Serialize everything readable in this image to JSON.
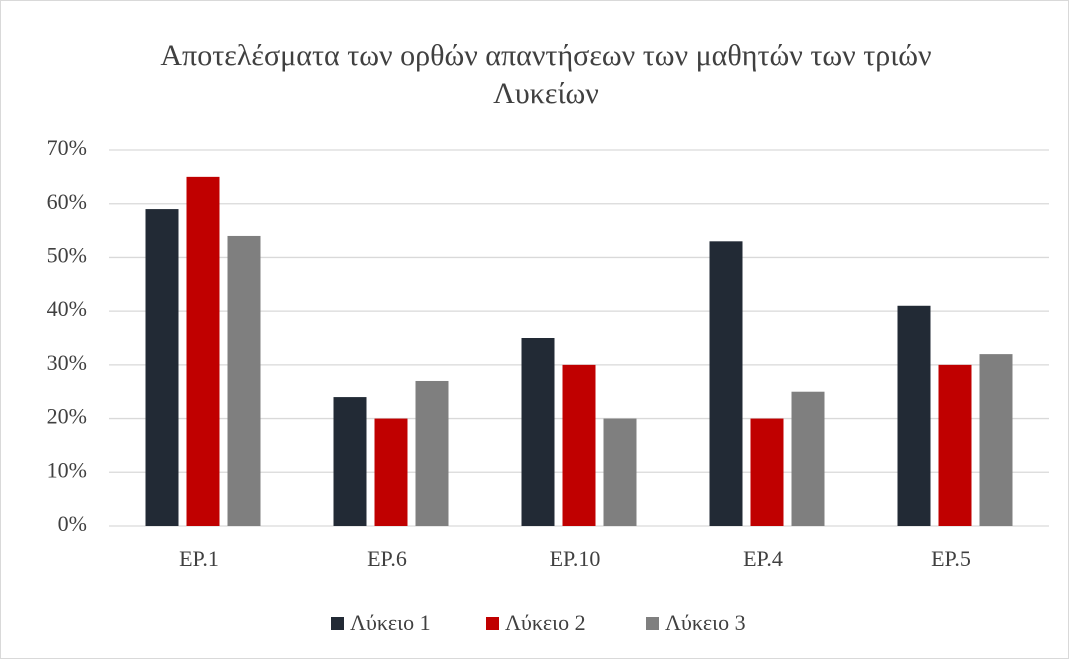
{
  "chart_data": {
    "type": "bar",
    "title": "Αποτελέσματα των ορθών απαντήσεων των μαθητών των τριών Λυκείων",
    "categories": [
      "ΕΡ.1",
      "ΕΡ.6",
      "ΕΡ.10",
      "ΕΡ.4",
      "ΕΡ.5"
    ],
    "series": [
      {
        "name": "Λύκειο 1",
        "color": "#222a35",
        "values": [
          59,
          24,
          35,
          53,
          41
        ]
      },
      {
        "name": "Λύκειο 2",
        "color": "#c00000",
        "values": [
          65,
          20,
          30,
          20,
          30
        ]
      },
      {
        "name": "Λύκειο 3",
        "color": "#7f7f7f",
        "values": [
          54,
          27,
          20,
          25,
          32
        ]
      }
    ],
    "ylim": [
      0,
      70
    ],
    "yticks": [
      {
        "value": 0,
        "label": "0%"
      },
      {
        "value": 10,
        "label": "10%"
      },
      {
        "value": 20,
        "label": "20%"
      },
      {
        "value": 30,
        "label": "30%"
      },
      {
        "value": 40,
        "label": "40%"
      },
      {
        "value": 50,
        "label": "50%"
      },
      {
        "value": 60,
        "label": "60%"
      },
      {
        "value": 70,
        "label": "70%"
      }
    ],
    "grid": true,
    "legend": "bottom"
  }
}
